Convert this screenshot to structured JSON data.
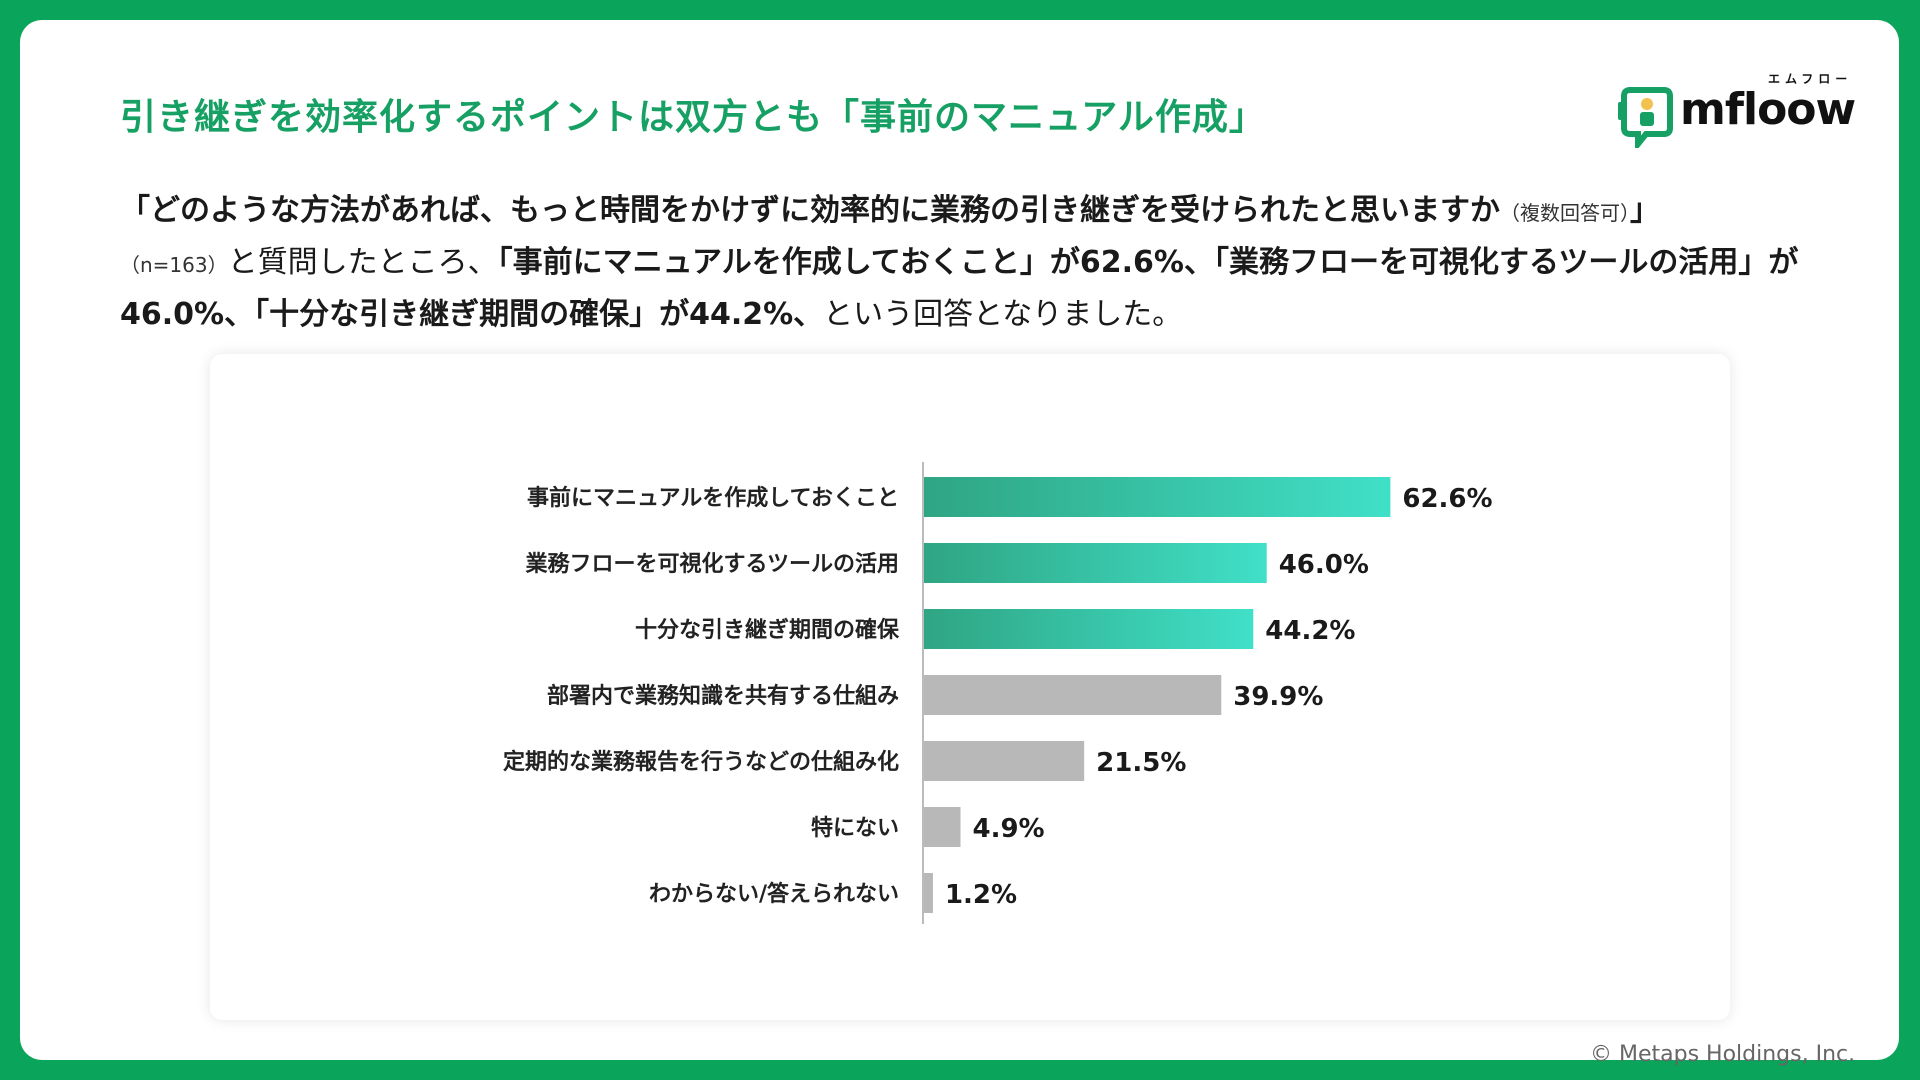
{
  "headline": "引き継ぎを効率化するポイントは双方とも「事前のマニュアル作成」",
  "logo": {
    "wordmark": "mfloow",
    "kana": "エムフロー"
  },
  "description": {
    "question": "「どのような方法があれば、もっと時間をかけずに効率的に業務の引き継ぎを受けられたと思いますか",
    "multiple_note": "（複数回答可）",
    "question_close": "」",
    "sample_note": "（n=163）",
    "intro": "と質問したところ、",
    "answer1": "「事前にマニュアルを作成しておくこと」が62.6%、",
    "answer2": "「業務フローを可視化するツールの活用」が46.0%、",
    "answer3": "「十分な引き継ぎ期間の確保」が44.2%、",
    "ending": "という回答となりました。"
  },
  "chart_data": {
    "type": "bar",
    "orientation": "horizontal",
    "categories": [
      "事前にマニュアルを作成しておくこと",
      "業務フローを可視化するツールの活用",
      "十分な引き継ぎ期間の確保",
      "部署内で業務知識を共有する仕組み",
      "定期的な業務報告を行うなどの仕組み化",
      "特にない",
      "わからない/答えられない"
    ],
    "values": [
      62.6,
      46.0,
      44.2,
      39.9,
      21.5,
      4.9,
      1.2
    ],
    "value_labels": [
      "62.6%",
      "46.0%",
      "44.2%",
      "39.9%",
      "21.5%",
      "4.9%",
      "1.2%"
    ],
    "unit": "%",
    "highlight_count": 3,
    "colors": {
      "highlight_start": "#2fa583",
      "highlight_end": "#40e0c8",
      "other": "#b8b8b8",
      "axis": "#bbbbbb"
    },
    "grid": false,
    "legend": "none"
  },
  "copyright": "© Metaps Holdings, Inc."
}
